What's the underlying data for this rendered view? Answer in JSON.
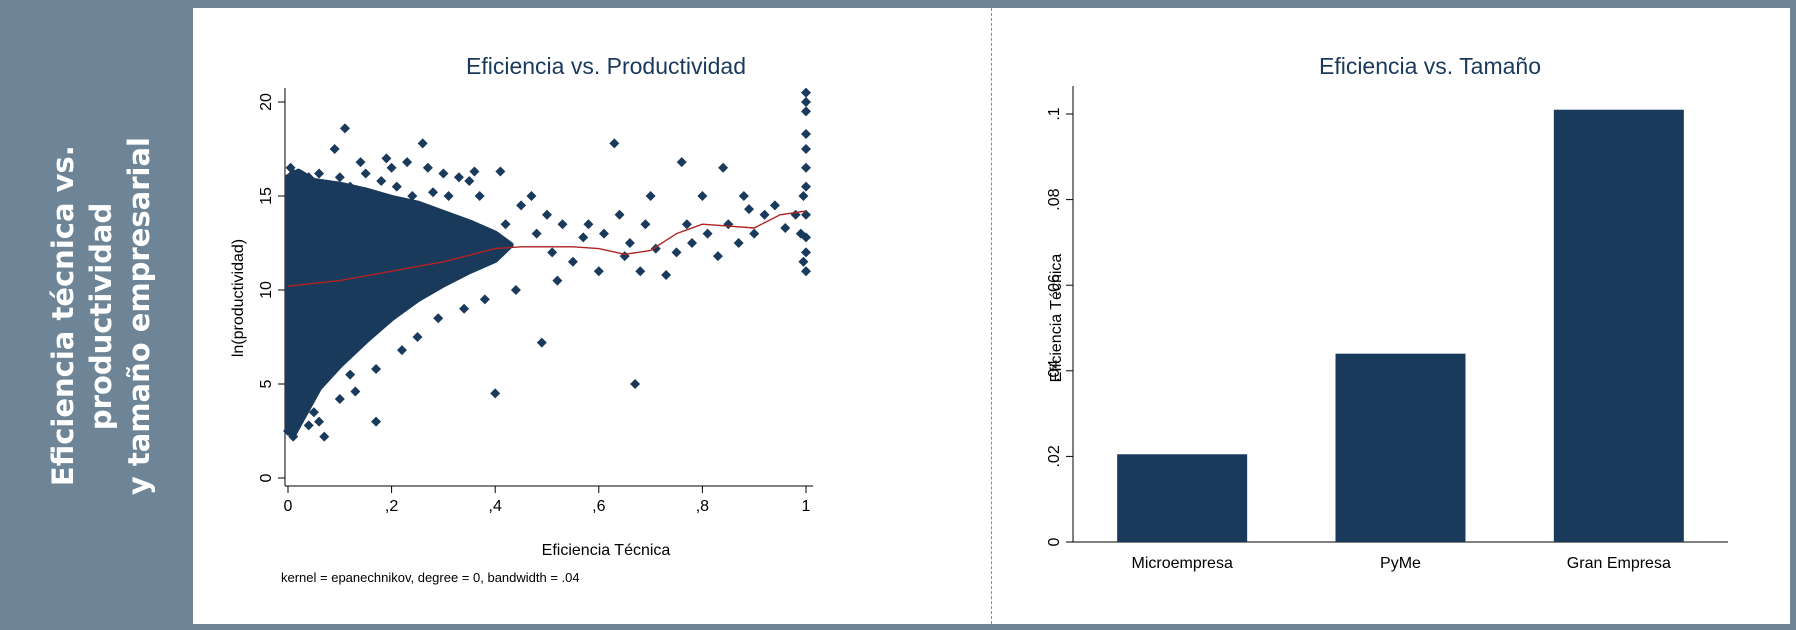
{
  "side_panel": {
    "title": "Eficiencia técnica vs.\nproductividad\ny tamaño empresarial"
  },
  "colors": {
    "panel": "#6d8597",
    "marker": "#1a3a5c",
    "smooth_line": "#b22222"
  },
  "chart_data": [
    {
      "type": "scatter",
      "title": "Eficiencia vs. Productividad",
      "xlabel": "Eficiencia Técnica",
      "ylabel": "ln(productividad)",
      "note": "kernel = epanechnikov, degree = 0, bandwidth = .04",
      "xlim": [
        0,
        1
      ],
      "ylim": [
        0,
        20
      ],
      "xticks": [
        0,
        0.2,
        0.4,
        0.6,
        0.8,
        1
      ],
      "xtick_labels": [
        "0",
        ",2",
        ",4",
        ",6",
        ",8",
        "1"
      ],
      "yticks": [
        0,
        5,
        10,
        15,
        20
      ],
      "ytick_labels": [
        "0",
        "5",
        "10",
        "15",
        "20"
      ],
      "grid": false,
      "marker": "diamond",
      "points": [
        [
          0.0,
          2.5
        ],
        [
          0.005,
          3.2
        ],
        [
          0.01,
          2.2
        ],
        [
          0.02,
          4.0
        ],
        [
          0.01,
          16.2
        ],
        [
          0.005,
          16.5
        ],
        [
          0.02,
          14.8
        ],
        [
          0.03,
          15.5
        ],
        [
          0.04,
          16.0
        ],
        [
          0.03,
          4.8
        ],
        [
          0.05,
          3.5
        ],
        [
          0.04,
          2.8
        ],
        [
          0.06,
          3.0
        ],
        [
          0.07,
          2.2
        ],
        [
          0.06,
          16.2
        ],
        [
          0.08,
          15.2
        ],
        [
          0.09,
          17.5
        ],
        [
          0.1,
          16.0
        ],
        [
          0.11,
          18.6
        ],
        [
          0.12,
          15.5
        ],
        [
          0.1,
          4.2
        ],
        [
          0.12,
          5.5
        ],
        [
          0.13,
          4.6
        ],
        [
          0.14,
          16.8
        ],
        [
          0.15,
          16.2
        ],
        [
          0.16,
          15.0
        ],
        [
          0.17,
          3.0
        ],
        [
          0.17,
          5.8
        ],
        [
          0.18,
          15.8
        ],
        [
          0.19,
          17.0
        ],
        [
          0.2,
          16.5
        ],
        [
          0.21,
          15.5
        ],
        [
          0.22,
          6.8
        ],
        [
          0.23,
          16.8
        ],
        [
          0.24,
          15.0
        ],
        [
          0.25,
          7.5
        ],
        [
          0.26,
          17.8
        ],
        [
          0.27,
          16.5
        ],
        [
          0.28,
          15.2
        ],
        [
          0.29,
          8.5
        ],
        [
          0.3,
          16.2
        ],
        [
          0.31,
          15.0
        ],
        [
          0.33,
          16.0
        ],
        [
          0.34,
          9.0
        ],
        [
          0.35,
          15.8
        ],
        [
          0.36,
          16.3
        ],
        [
          0.37,
          15.0
        ],
        [
          0.38,
          9.5
        ],
        [
          0.4,
          4.5
        ],
        [
          0.41,
          16.3
        ],
        [
          0.42,
          13.5
        ],
        [
          0.44,
          10.0
        ],
        [
          0.45,
          14.5
        ],
        [
          0.47,
          15.0
        ],
        [
          0.48,
          13.0
        ],
        [
          0.49,
          7.2
        ],
        [
          0.5,
          14.0
        ],
        [
          0.51,
          12.0
        ],
        [
          0.52,
          10.5
        ],
        [
          0.53,
          13.5
        ],
        [
          0.55,
          11.5
        ],
        [
          0.57,
          12.8
        ],
        [
          0.58,
          13.5
        ],
        [
          0.6,
          11.0
        ],
        [
          0.61,
          13.0
        ],
        [
          0.63,
          17.8
        ],
        [
          0.64,
          14.0
        ],
        [
          0.65,
          11.8
        ],
        [
          0.66,
          12.5
        ],
        [
          0.67,
          5.0
        ],
        [
          0.68,
          11.0
        ],
        [
          0.69,
          13.5
        ],
        [
          0.7,
          15.0
        ],
        [
          0.71,
          12.2
        ],
        [
          0.73,
          10.8
        ],
        [
          0.75,
          12.0
        ],
        [
          0.76,
          16.8
        ],
        [
          0.77,
          13.5
        ],
        [
          0.78,
          12.5
        ],
        [
          0.8,
          15.0
        ],
        [
          0.81,
          13.0
        ],
        [
          0.83,
          11.8
        ],
        [
          0.84,
          16.5
        ],
        [
          0.85,
          13.5
        ],
        [
          0.87,
          12.5
        ],
        [
          0.88,
          15.0
        ],
        [
          0.89,
          14.3
        ],
        [
          0.9,
          13.0
        ],
        [
          0.92,
          14.0
        ],
        [
          0.94,
          14.5
        ],
        [
          0.96,
          13.3
        ],
        [
          0.98,
          14.0
        ],
        [
          0.99,
          13.0
        ],
        [
          1.0,
          20.5
        ],
        [
          1.0,
          20.0
        ],
        [
          1.0,
          19.5
        ],
        [
          1.0,
          18.3
        ],
        [
          1.0,
          17.5
        ],
        [
          1.0,
          16.5
        ],
        [
          1.0,
          15.5
        ],
        [
          1.0,
          14.0
        ],
        [
          1.0,
          12.8
        ],
        [
          1.0,
          12.0
        ],
        [
          1.0,
          11.0
        ],
        [
          0.995,
          15.0
        ],
        [
          0.995,
          11.5
        ]
      ],
      "cloud": [
        [
          0.0,
          2.5
        ],
        [
          0.0,
          16.0
        ],
        [
          0.02,
          16.3
        ],
        [
          0.05,
          15.8
        ],
        [
          0.1,
          15.6
        ],
        [
          0.15,
          15.3
        ],
        [
          0.2,
          14.9
        ],
        [
          0.25,
          14.6
        ],
        [
          0.3,
          14.1
        ],
        [
          0.35,
          13.6
        ],
        [
          0.4,
          13.0
        ],
        [
          0.43,
          12.4
        ],
        [
          0.4,
          11.6
        ],
        [
          0.35,
          11.0
        ],
        [
          0.3,
          10.3
        ],
        [
          0.25,
          9.5
        ],
        [
          0.2,
          8.5
        ],
        [
          0.15,
          7.3
        ],
        [
          0.1,
          6.0
        ],
        [
          0.06,
          4.8
        ],
        [
          0.03,
          3.3
        ],
        [
          0.01,
          2.3
        ]
      ],
      "smooth": [
        [
          0.0,
          10.2
        ],
        [
          0.1,
          10.5
        ],
        [
          0.2,
          11.0
        ],
        [
          0.3,
          11.5
        ],
        [
          0.4,
          12.2
        ],
        [
          0.45,
          12.3
        ],
        [
          0.5,
          12.3
        ],
        [
          0.55,
          12.3
        ],
        [
          0.6,
          12.2
        ],
        [
          0.65,
          11.9
        ],
        [
          0.7,
          12.1
        ],
        [
          0.75,
          13.0
        ],
        [
          0.8,
          13.5
        ],
        [
          0.85,
          13.4
        ],
        [
          0.9,
          13.3
        ],
        [
          0.95,
          14.0
        ],
        [
          1.0,
          14.2
        ]
      ]
    },
    {
      "type": "bar",
      "title": "Eficiencia vs. Tamaño",
      "xlabel": "",
      "ylabel": "Eficiencia Técnica",
      "categories": [
        "Microempresa",
        "PyMe",
        "Gran Empresa"
      ],
      "values": [
        0.0205,
        0.044,
        0.101
      ],
      "ylim": [
        0,
        0.1
      ],
      "yticks": [
        0,
        0.02,
        0.04,
        0.06,
        0.08,
        0.1
      ],
      "ytick_labels": [
        "0",
        ".02",
        ".04",
        ".06",
        ".08",
        ".1"
      ],
      "grid": false
    }
  ]
}
